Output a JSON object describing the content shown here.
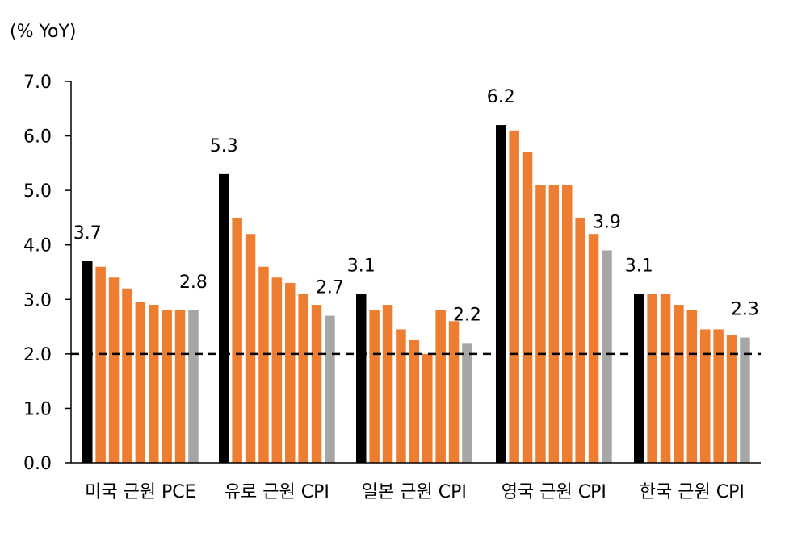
{
  "chart_data": {
    "type": "bar",
    "ylabel": "(% YoY)",
    "ylim": [
      0,
      7
    ],
    "yticks": [
      "0.0",
      "1.0",
      "2.0",
      "3.0",
      "4.0",
      "5.0",
      "6.0",
      "7.0"
    ],
    "reference_line": {
      "value": 2.0,
      "style": "dashed",
      "color": "#000000"
    },
    "colors": {
      "first": "#000000",
      "middle": "#ED7D31",
      "last": "#A6A6A6"
    },
    "groups": [
      {
        "category": "미국 근원 PCE",
        "values": [
          3.7,
          3.6,
          3.4,
          3.2,
          2.95,
          2.9,
          2.8,
          2.8,
          2.8
        ],
        "labels": [
          {
            "index": 0,
            "text": "3.7"
          },
          {
            "index": 8,
            "text": "2.8"
          }
        ]
      },
      {
        "category": "유로 근원 CPI",
        "values": [
          5.3,
          4.5,
          4.2,
          3.6,
          3.4,
          3.3,
          3.1,
          2.9,
          2.7
        ],
        "labels": [
          {
            "index": 0,
            "text": "5.3"
          },
          {
            "index": 8,
            "text": "2.7"
          }
        ]
      },
      {
        "category": "일본 근원 CPI",
        "values": [
          3.1,
          2.8,
          2.9,
          2.45,
          2.25,
          2.0,
          2.8,
          2.6,
          2.2
        ],
        "labels": [
          {
            "index": 0,
            "text": "3.1"
          },
          {
            "index": 8,
            "text": "2.2"
          }
        ]
      },
      {
        "category": "영국 근원 CPI",
        "values": [
          6.2,
          6.1,
          5.7,
          5.1,
          5.1,
          5.1,
          4.5,
          4.2,
          3.9
        ],
        "labels": [
          {
            "index": 0,
            "text": "6.2"
          },
          {
            "index": 8,
            "text": "3.9"
          }
        ]
      },
      {
        "category": "한국 근원 CPI",
        "values": [
          3.1,
          3.1,
          3.1,
          2.9,
          2.8,
          2.45,
          2.45,
          2.35,
          2.3
        ],
        "labels": [
          {
            "index": 0,
            "text": "3.1"
          },
          {
            "index": 8,
            "text": "2.3"
          }
        ]
      }
    ]
  }
}
